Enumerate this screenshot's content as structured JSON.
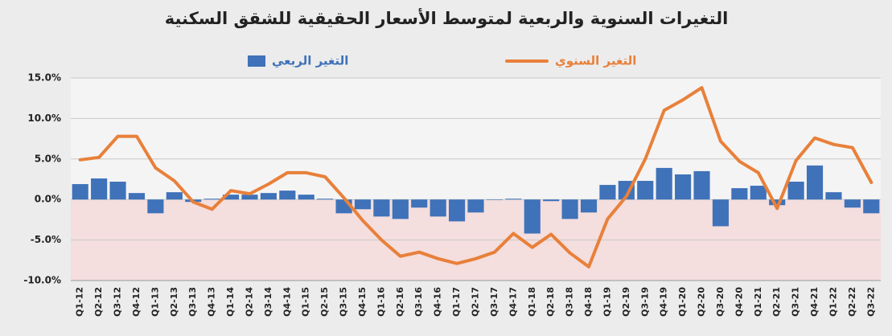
{
  "chart_data": {
    "type": "combo",
    "title": "التغيرات السنوية والربعية لمتوسط الأسعار الحقيقية للشقق السكنية",
    "categories": [
      "Q1-12",
      "Q2-12",
      "Q3-12",
      "Q4-12",
      "Q1-13",
      "Q2-13",
      "Q3-13",
      "Q4-13",
      "Q1-14",
      "Q2-14",
      "Q3-14",
      "Q4-14",
      "Q1-15",
      "Q2-15",
      "Q3-15",
      "Q4-15",
      "Q1-16",
      "Q2-16",
      "Q3-16",
      "Q4-16",
      "Q1-17",
      "Q2-17",
      "Q3-17",
      "Q4-17",
      "Q1-18",
      "Q2-18",
      "Q3-18",
      "Q4-18",
      "Q1-19",
      "Q2-19",
      "Q3-19",
      "Q4-19",
      "Q1-20",
      "Q2-20",
      "Q3-20",
      "Q4-20",
      "Q1-21",
      "Q2-21",
      "Q3-21",
      "Q4-21",
      "Q1-22",
      "Q2-22",
      "Q3-22"
    ],
    "series": [
      {
        "name": "التغير الربعي",
        "type": "bar",
        "color": "#3f72b9",
        "values": [
          1.9,
          2.6,
          2.2,
          0.8,
          -1.7,
          0.9,
          -0.3,
          0.1,
          0.6,
          0.6,
          0.8,
          1.1,
          0.6,
          0.1,
          -1.7,
          -1.2,
          -2.1,
          -2.4,
          -1.0,
          -2.1,
          -2.7,
          -1.6,
          0.0,
          0.1,
          -4.2,
          -0.2,
          -2.4,
          -1.6,
          1.8,
          2.3,
          2.3,
          3.9,
          3.1,
          3.5,
          -3.3,
          1.4,
          1.7,
          -0.7,
          2.2,
          4.2,
          0.9,
          -1.0,
          -1.7
        ]
      },
      {
        "name": "التغير السنوي",
        "type": "line",
        "color": "#e8803a",
        "values": [
          4.9,
          5.2,
          7.8,
          7.8,
          3.9,
          2.3,
          -0.3,
          -1.2,
          1.1,
          0.7,
          1.9,
          3.3,
          3.3,
          2.8,
          0.2,
          -2.6,
          -5.0,
          -7.0,
          -6.5,
          -7.3,
          -7.9,
          -7.3,
          -6.5,
          -4.2,
          -5.9,
          -4.3,
          -6.6,
          -8.3,
          -2.4,
          0.4,
          5.0,
          11.0,
          12.3,
          13.8,
          7.2,
          4.7,
          3.3,
          -1.1,
          4.8,
          7.6,
          6.8,
          6.4,
          2.1
        ]
      }
    ],
    "ylim": [
      -10,
      15
    ],
    "yticks": [
      {
        "value": -10,
        "label": "-10.0%"
      },
      {
        "value": -5,
        "label": "-5.0%"
      },
      {
        "value": 0,
        "label": "0.0%"
      },
      {
        "value": 5,
        "label": "5.0%"
      },
      {
        "value": 10,
        "label": "10.0%"
      },
      {
        "value": 15,
        "label": "15.0%"
      }
    ],
    "grid": true
  }
}
